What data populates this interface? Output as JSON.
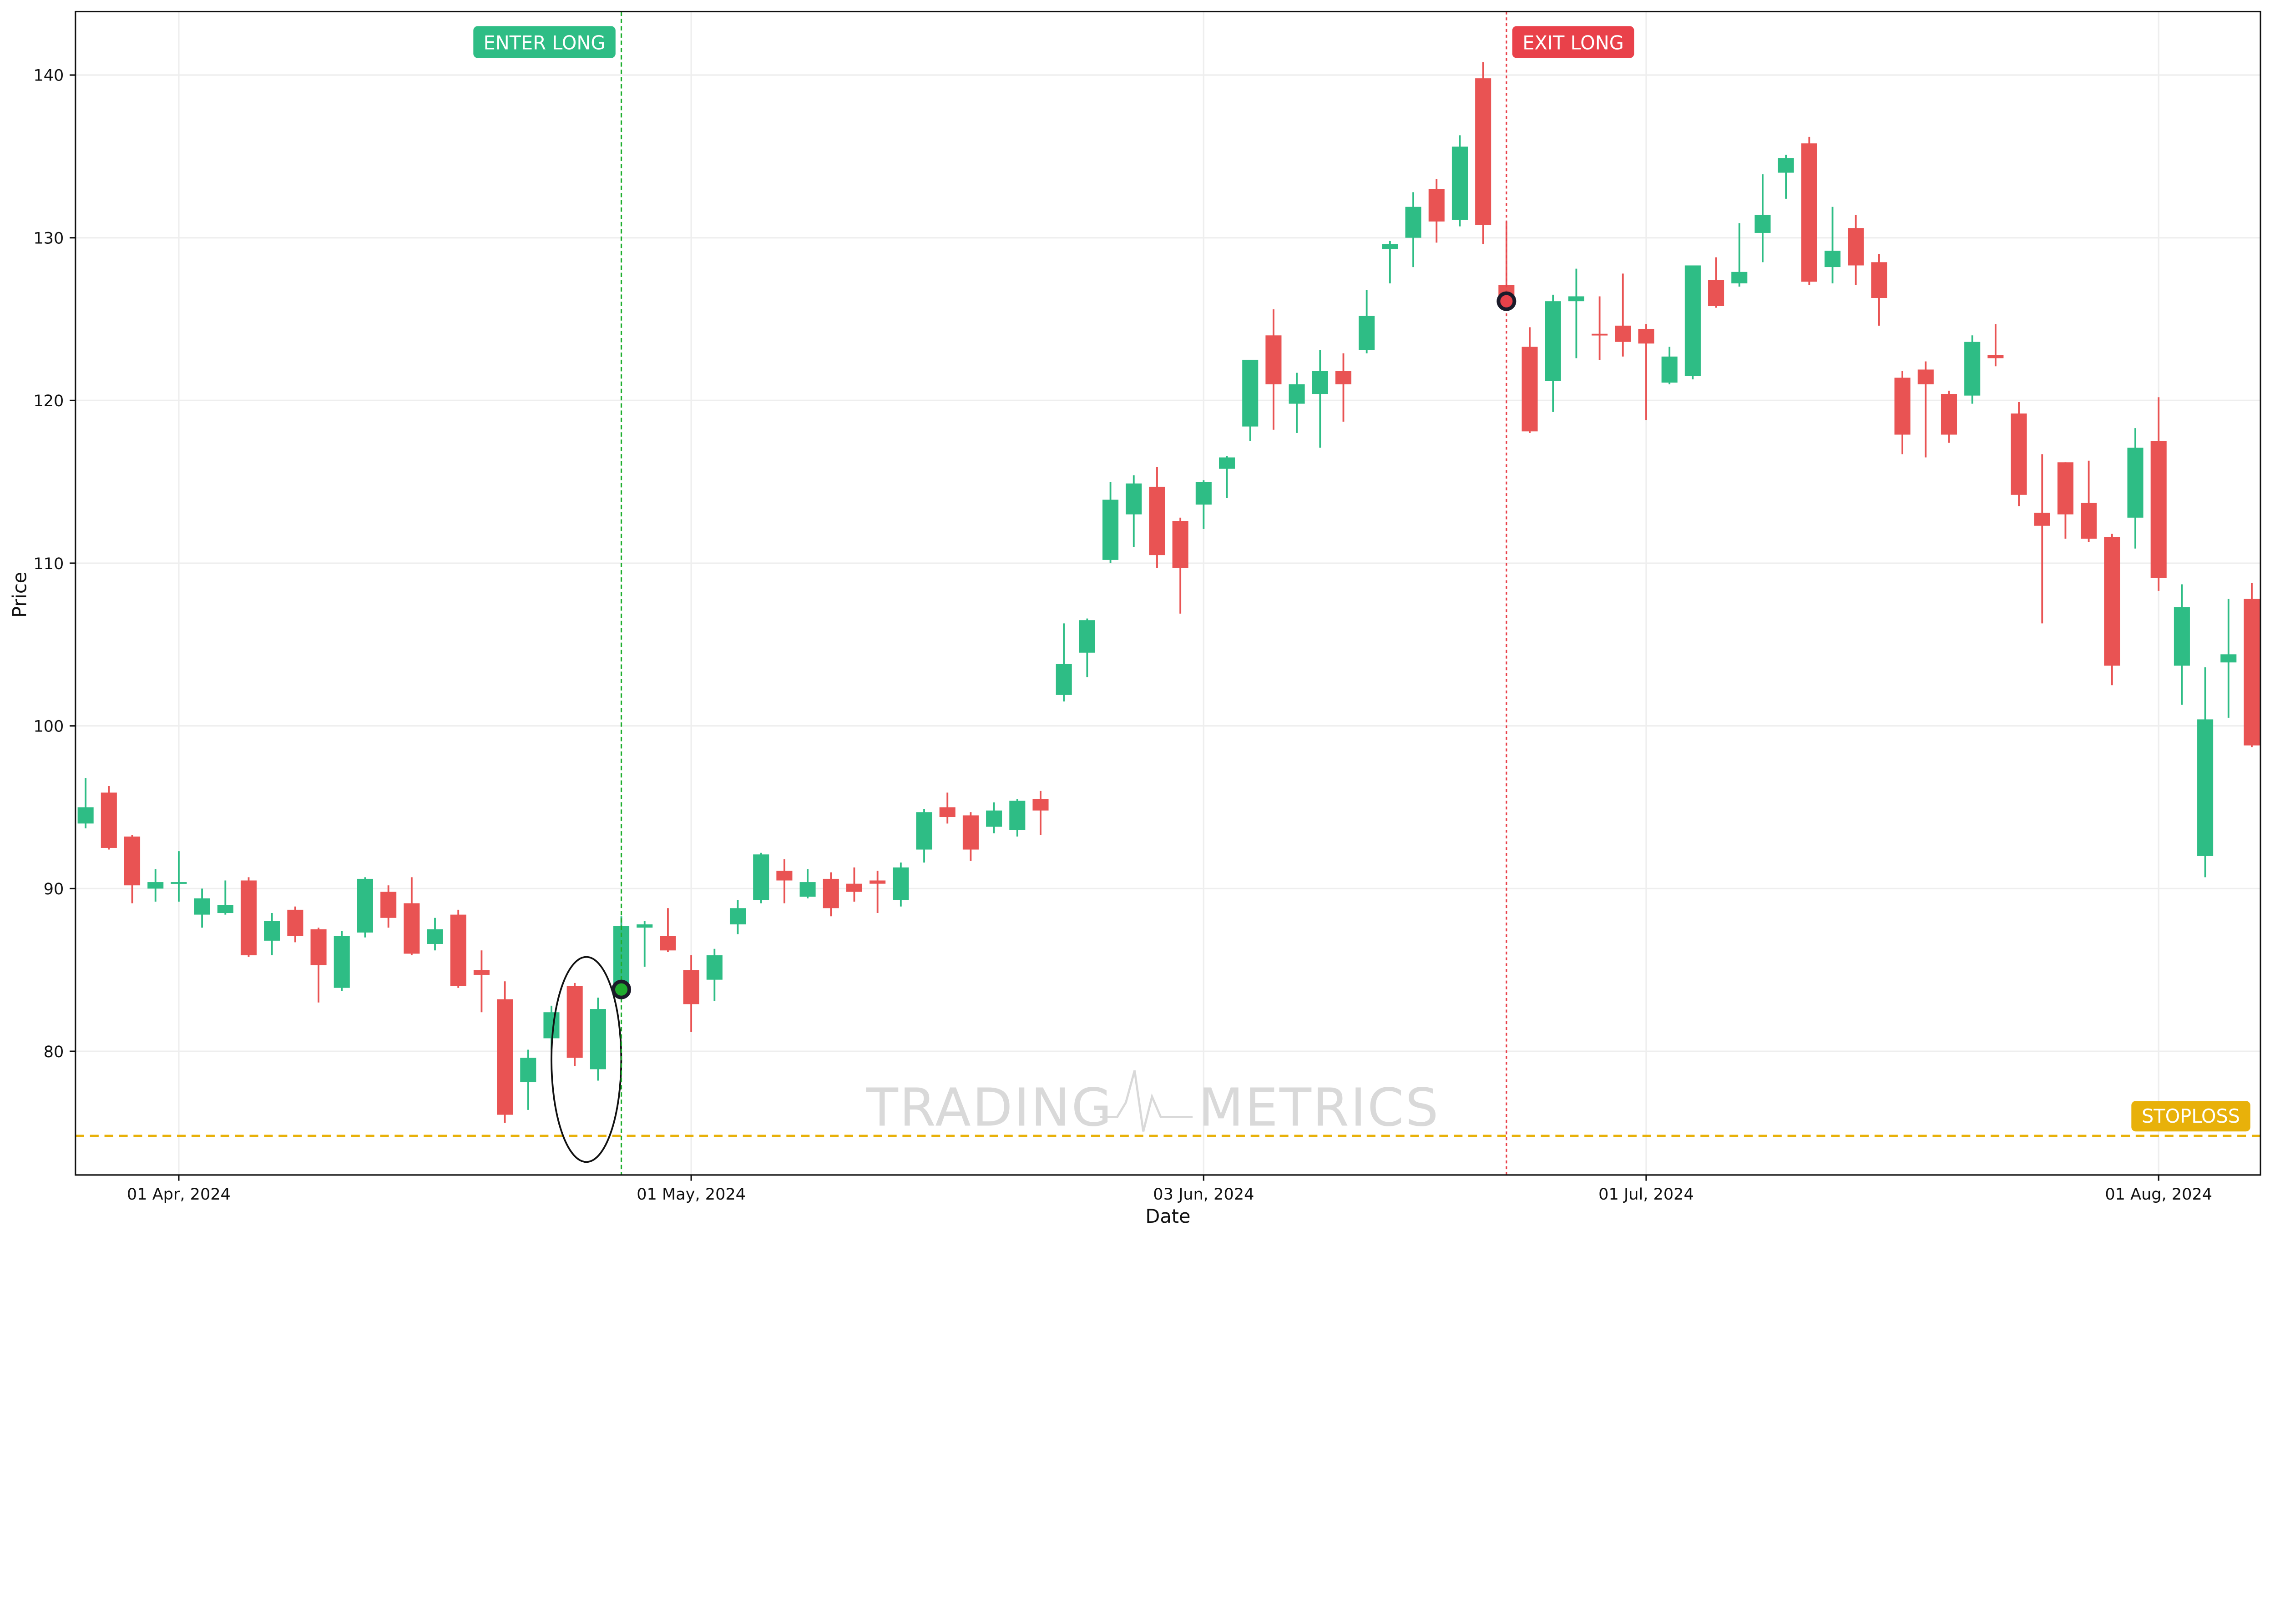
{
  "chart_data": {
    "type": "candlestick",
    "xlabel": "Date",
    "ylabel": "Price",
    "ylim": [
      72.4,
      143.9
    ],
    "yticks": [
      80,
      90,
      100,
      110,
      120,
      130,
      140
    ],
    "xticks": [
      {
        "date": "2024-04-01",
        "label": "01 Apr, 2024"
      },
      {
        "date": "2024-05-01",
        "label": "01 May, 2024"
      },
      {
        "date": "2024-06-03",
        "label": "03 Jun, 2024"
      },
      {
        "date": "2024-07-01",
        "label": "01 Jul, 2024"
      },
      {
        "date": "2024-08-01",
        "label": "01 Aug, 2024"
      }
    ],
    "grid": true,
    "colors": {
      "up": "#2ebd85",
      "down": "#e95353",
      "entry": "#1fae2e",
      "exit": "#e9414a",
      "stoploss": "#e8b10a"
    },
    "candles_fields": [
      "date",
      "open",
      "high",
      "low",
      "close"
    ],
    "candles": [
      [
        "2024-03-25",
        94.0,
        96.8,
        93.7,
        95.0
      ],
      [
        "2024-03-26",
        95.9,
        96.3,
        92.4,
        92.5
      ],
      [
        "2024-03-27",
        93.2,
        93.3,
        89.1,
        90.2
      ],
      [
        "2024-03-28",
        90.0,
        91.2,
        89.2,
        90.4
      ],
      [
        "2024-04-01",
        90.3,
        92.3,
        89.2,
        90.4
      ],
      [
        "2024-04-02",
        88.4,
        90.0,
        87.6,
        89.4
      ],
      [
        "2024-04-03",
        88.5,
        90.5,
        88.4,
        89.0
      ],
      [
        "2024-04-04",
        90.5,
        90.7,
        85.8,
        85.9
      ],
      [
        "2024-04-05",
        86.8,
        88.5,
        85.9,
        88.0
      ],
      [
        "2024-04-08",
        88.7,
        88.9,
        86.7,
        87.1
      ],
      [
        "2024-04-09",
        87.5,
        87.6,
        83.0,
        85.3
      ],
      [
        "2024-04-10",
        83.9,
        87.4,
        83.7,
        87.1
      ],
      [
        "2024-04-11",
        87.3,
        90.7,
        87.0,
        90.6
      ],
      [
        "2024-04-12",
        89.8,
        90.2,
        87.6,
        88.2
      ],
      [
        "2024-04-15",
        89.1,
        90.7,
        85.9,
        86.0
      ],
      [
        "2024-04-16",
        86.6,
        88.2,
        86.2,
        87.5
      ],
      [
        "2024-04-17",
        88.4,
        88.7,
        83.9,
        84.0
      ],
      [
        "2024-04-18",
        85.0,
        86.2,
        82.4,
        84.7
      ],
      [
        "2024-04-19",
        83.2,
        84.3,
        75.6,
        76.1
      ],
      [
        "2024-04-22",
        78.1,
        80.1,
        76.4,
        79.6
      ],
      [
        "2024-04-23",
        80.8,
        82.8,
        80.1,
        82.4
      ],
      [
        "2024-04-24",
        84.0,
        84.2,
        79.1,
        79.6
      ],
      [
        "2024-04-25",
        78.9,
        83.3,
        78.2,
        82.6
      ],
      [
        "2024-04-26",
        84.0,
        88.3,
        83.5,
        87.7
      ],
      [
        "2024-04-29",
        87.6,
        88.0,
        85.2,
        87.8
      ],
      [
        "2024-04-30",
        87.1,
        88.8,
        86.1,
        86.2
      ],
      [
        "2024-05-01",
        85.0,
        85.9,
        81.2,
        82.9
      ],
      [
        "2024-05-02",
        84.4,
        86.3,
        83.1,
        85.9
      ],
      [
        "2024-05-03",
        87.8,
        89.3,
        87.2,
        88.8
      ],
      [
        "2024-05-06",
        89.3,
        92.2,
        89.1,
        92.1
      ],
      [
        "2024-05-07",
        91.1,
        91.8,
        89.1,
        90.5
      ],
      [
        "2024-05-08",
        89.5,
        91.2,
        89.4,
        90.4
      ],
      [
        "2024-05-09",
        90.6,
        91.0,
        88.3,
        88.8
      ],
      [
        "2024-05-10",
        90.3,
        91.3,
        89.2,
        89.8
      ],
      [
        "2024-05-13",
        90.5,
        91.1,
        88.5,
        90.3
      ],
      [
        "2024-05-14",
        89.3,
        91.6,
        88.9,
        91.3
      ],
      [
        "2024-05-15",
        92.4,
        94.9,
        91.6,
        94.7
      ],
      [
        "2024-05-16",
        95.0,
        95.9,
        94.0,
        94.4
      ],
      [
        "2024-05-17",
        94.5,
        94.7,
        91.7,
        92.4
      ],
      [
        "2024-05-20",
        93.8,
        95.3,
        93.4,
        94.8
      ],
      [
        "2024-05-21",
        93.6,
        95.5,
        93.2,
        95.4
      ],
      [
        "2024-05-22",
        95.5,
        96.0,
        93.3,
        94.8
      ],
      [
        "2024-05-23",
        101.9,
        106.3,
        101.5,
        103.8
      ],
      [
        "2024-05-24",
        104.5,
        106.6,
        103.0,
        106.5
      ],
      [
        "2024-05-28",
        110.2,
        115.0,
        110.0,
        113.9
      ],
      [
        "2024-05-29",
        113.0,
        115.4,
        111.0,
        114.9
      ],
      [
        "2024-05-30",
        114.7,
        115.9,
        109.7,
        110.5
      ],
      [
        "2024-05-31",
        112.6,
        112.8,
        106.9,
        109.7
      ],
      [
        "2024-06-03",
        113.6,
        115.1,
        112.1,
        115.0
      ],
      [
        "2024-06-04",
        115.8,
        116.6,
        114.0,
        116.5
      ],
      [
        "2024-06-05",
        118.4,
        122.5,
        117.5,
        122.5
      ],
      [
        "2024-06-06",
        124.0,
        125.6,
        118.2,
        121.0
      ],
      [
        "2024-06-07",
        119.8,
        121.7,
        118.0,
        121.0
      ],
      [
        "2024-06-10",
        120.4,
        123.1,
        117.1,
        121.8
      ],
      [
        "2024-06-11",
        121.8,
        122.9,
        118.7,
        121.0
      ],
      [
        "2024-06-12",
        123.1,
        126.8,
        122.9,
        125.2
      ],
      [
        "2024-06-13",
        129.3,
        129.8,
        127.2,
        129.6
      ],
      [
        "2024-06-14",
        130.0,
        132.8,
        128.2,
        131.9
      ],
      [
        "2024-06-17",
        133.0,
        133.6,
        129.7,
        131.0
      ],
      [
        "2024-06-18",
        131.1,
        136.3,
        130.7,
        135.6
      ],
      [
        "2024-06-20",
        139.8,
        140.8,
        129.6,
        130.8
      ],
      [
        "2024-06-21",
        127.1,
        131.0,
        125.9,
        126.2
      ],
      [
        "2024-06-24",
        123.3,
        124.5,
        118.0,
        118.1
      ],
      [
        "2024-06-25",
        121.2,
        126.5,
        119.3,
        126.1
      ],
      [
        "2024-06-26",
        126.1,
        128.1,
        122.6,
        126.4
      ],
      [
        "2024-06-27",
        124.1,
        126.4,
        122.5,
        124.0
      ],
      [
        "2024-06-28",
        124.6,
        127.8,
        122.7,
        123.6
      ],
      [
        "2024-07-01",
        124.4,
        124.7,
        118.8,
        123.5
      ],
      [
        "2024-07-02",
        121.1,
        123.3,
        121.0,
        122.7
      ],
      [
        "2024-07-03",
        121.5,
        128.3,
        121.3,
        128.3
      ],
      [
        "2024-07-05",
        127.4,
        128.8,
        125.7,
        125.8
      ],
      [
        "2024-07-08",
        127.2,
        130.9,
        127.0,
        127.9
      ],
      [
        "2024-07-09",
        130.3,
        133.9,
        128.5,
        131.4
      ],
      [
        "2024-07-10",
        134.0,
        135.1,
        132.4,
        134.9
      ],
      [
        "2024-07-11",
        135.8,
        136.2,
        127.1,
        127.3
      ],
      [
        "2024-07-12",
        128.2,
        131.9,
        127.2,
        129.2
      ],
      [
        "2024-07-15",
        130.6,
        131.4,
        127.1,
        128.3
      ],
      [
        "2024-07-16",
        128.5,
        129.0,
        124.6,
        126.3
      ],
      [
        "2024-07-17",
        121.4,
        121.8,
        116.7,
        117.9
      ],
      [
        "2024-07-18",
        121.9,
        122.4,
        116.5,
        121.0
      ],
      [
        "2024-07-19",
        120.4,
        120.6,
        117.4,
        117.9
      ],
      [
        "2024-07-22",
        120.3,
        124.0,
        119.8,
        123.6
      ],
      [
        "2024-07-23",
        122.8,
        124.7,
        122.1,
        122.6
      ],
      [
        "2024-07-24",
        119.2,
        119.9,
        113.5,
        114.2
      ],
      [
        "2024-07-25",
        113.1,
        116.7,
        106.3,
        112.3
      ],
      [
        "2024-07-26",
        116.2,
        116.2,
        111.5,
        113.0
      ],
      [
        "2024-07-29",
        113.7,
        116.3,
        111.3,
        111.5
      ],
      [
        "2024-07-30",
        111.6,
        111.8,
        102.5,
        103.7
      ],
      [
        "2024-07-31",
        112.8,
        118.3,
        110.9,
        117.1
      ],
      [
        "2024-08-01",
        117.5,
        120.2,
        108.3,
        109.1
      ],
      [
        "2024-08-02",
        103.7,
        108.7,
        101.3,
        107.3
      ],
      [
        "2024-08-05",
        92.0,
        103.6,
        90.7,
        100.4
      ],
      [
        "2024-08-06",
        103.9,
        107.8,
        100.5,
        104.4
      ],
      [
        "2024-08-07",
        107.8,
        108.8,
        98.7,
        98.8
      ]
    ],
    "annotations": {
      "entry": {
        "label": "ENTER LONG",
        "date": "2024-04-26",
        "price": 83.8
      },
      "exit": {
        "label": "EXIT LONG",
        "date": "2024-06-21",
        "price": 126.1
      },
      "stoploss": {
        "label": "STOPLOSS",
        "price": 74.8
      },
      "pattern_ellipse": {
        "dates": [
          "2024-04-23",
          "2024-04-25"
        ],
        "price_range": [
          73.2,
          85.8
        ]
      }
    },
    "watermark": "TRADING METRICS"
  }
}
